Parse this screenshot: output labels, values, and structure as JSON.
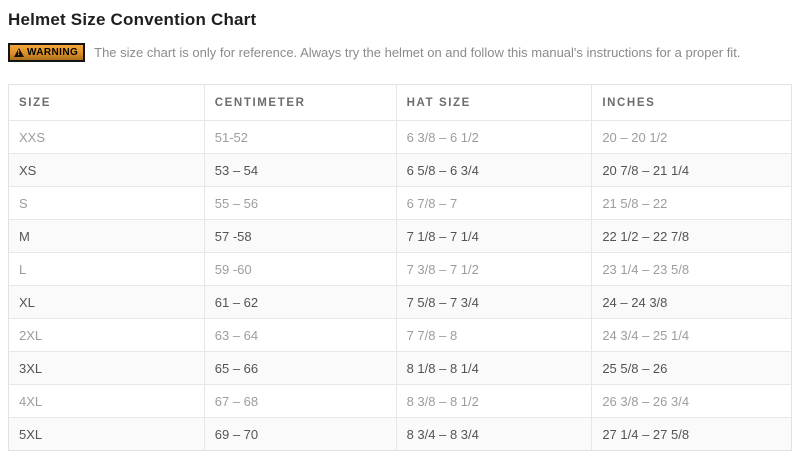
{
  "page": {
    "title": "Helmet Size Convention Chart"
  },
  "warning": {
    "badge_label": "WARNING",
    "text": "The size chart is only for reference. Always try the helmet on and follow this manual's instructions for a proper fit."
  },
  "colors": {
    "badge_orange_top": "#f2a53c",
    "badge_orange_bottom": "#ab701c",
    "badge_border": "#141414",
    "title_text": "#1f1f1f",
    "warning_text": "#8b8b8b",
    "header_text": "#6d6d6d",
    "row_text_light": "#9d9d9d",
    "row_text_dark": "#545454",
    "stripe_background": "#fafafa",
    "table_border": "#e2e2e2"
  },
  "table": {
    "columns": [
      "SIZE",
      "CENTIMETER",
      "HAT SIZE",
      "INCHES"
    ],
    "rows": [
      [
        "XXS",
        "51-52",
        "6 3/8 – 6 1/2",
        "20 – 20 1/2"
      ],
      [
        "XS",
        "53 – 54",
        "6 5/8 – 6 3/4",
        "20 7/8 – 21 1/4"
      ],
      [
        "S",
        "55 – 56",
        "6 7/8 – 7",
        "21 5/8 – 22"
      ],
      [
        "M",
        "57 -58",
        "7 1/8 – 7 1/4",
        "22 1/2 – 22 7/8"
      ],
      [
        "L",
        "59 -60",
        "7 3/8 – 7 1/2",
        "23 1/4 – 23 5/8"
      ],
      [
        "XL",
        "61 – 62",
        "7 5/8 – 7 3/4",
        "24 – 24 3/8"
      ],
      [
        "2XL",
        "63 – 64",
        "7 7/8 – 8",
        "24 3/4 – 25 1/4"
      ],
      [
        "3XL",
        "65 – 66",
        "8 1/8 – 8 1/4",
        "25 5/8 – 26"
      ],
      [
        "4XL",
        "67 – 68",
        "8 3/8 – 8 1/2",
        "26 3/8 – 26 3/4"
      ],
      [
        "5XL",
        "69 – 70",
        "8 3/4 – 8 3/4",
        "27 1/4 – 27 5/8"
      ]
    ]
  }
}
